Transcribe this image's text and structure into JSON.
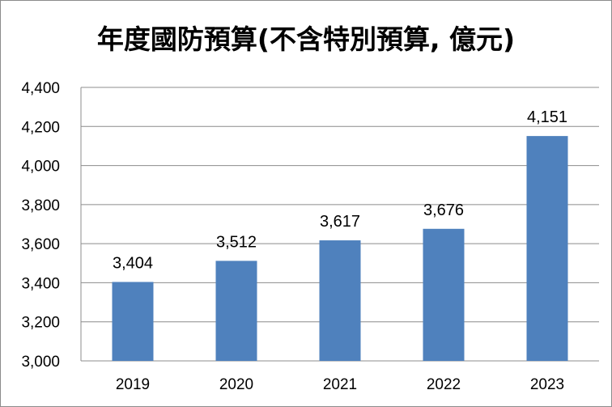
{
  "chart_data": {
    "type": "bar",
    "title": "年度國防預算(不含特別預算, 億元)",
    "categories": [
      "2019",
      "2020",
      "2021",
      "2022",
      "2023"
    ],
    "values": [
      3404,
      3512,
      3617,
      3676,
      4151
    ],
    "value_labels": [
      "3,404",
      "3,512",
      "3,617",
      "3,676",
      "4,151"
    ],
    "ylim": [
      3000,
      4400
    ],
    "yticks": [
      3000,
      3200,
      3400,
      3600,
      3800,
      4000,
      4200,
      4400
    ],
    "ytick_labels": [
      "3,000",
      "3,200",
      "3,400",
      "3,600",
      "3,800",
      "4,000",
      "4,200",
      "4,400"
    ],
    "xlabel": "",
    "ylabel": "",
    "grid": true,
    "legend": "none",
    "bar_color": "#4f81bd",
    "grid_color": "#8c8c8c"
  }
}
